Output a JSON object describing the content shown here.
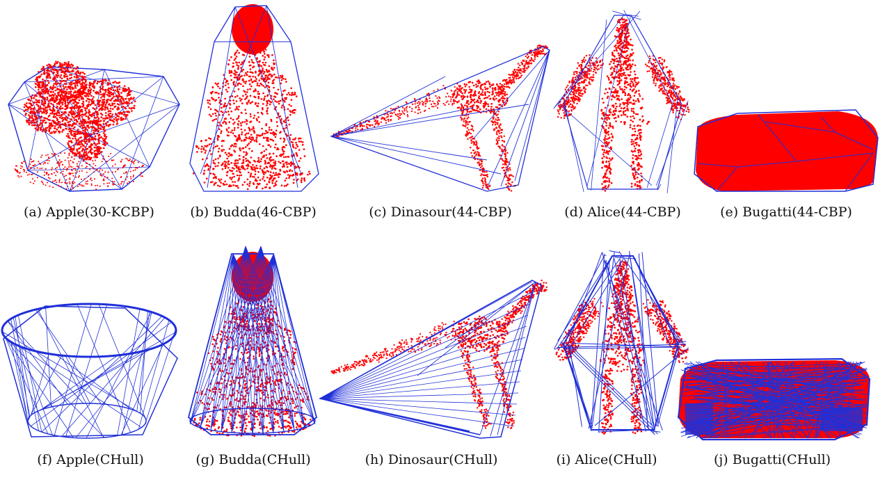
{
  "figure": {
    "panels": [
      {
        "caption": "(a) Apple(30-KCBP)",
        "model": "apple",
        "method": "cbp"
      },
      {
        "caption": "(b) Budda(46-CBP)",
        "model": "buddha",
        "method": "cbp"
      },
      {
        "caption": "(c) Dinasour(44-CBP)",
        "model": "dinosaur",
        "method": "cbp"
      },
      {
        "caption": "(d) Alice(44-CBP)",
        "model": "alice",
        "method": "cbp"
      },
      {
        "caption": "(e) Bugatti(44-CBP)",
        "model": "bugatti",
        "method": "cbp"
      },
      {
        "caption": "(f) Apple(CHull)",
        "model": "apple",
        "method": "chull"
      },
      {
        "caption": "(g) Budda(CHull)",
        "model": "buddha",
        "method": "chull"
      },
      {
        "caption": "(h) Dinosaur(CHull)",
        "model": "dinosaur",
        "method": "chull"
      },
      {
        "caption": "(i) Alice(CHull)",
        "model": "alice",
        "method": "chull"
      },
      {
        "caption": "(j) Bugatti(CHull)",
        "model": "bugatti",
        "method": "chull"
      }
    ],
    "colors": {
      "points": "#ff0000",
      "hull_edges": "#1f2fd8",
      "background": "#ffffff"
    }
  }
}
